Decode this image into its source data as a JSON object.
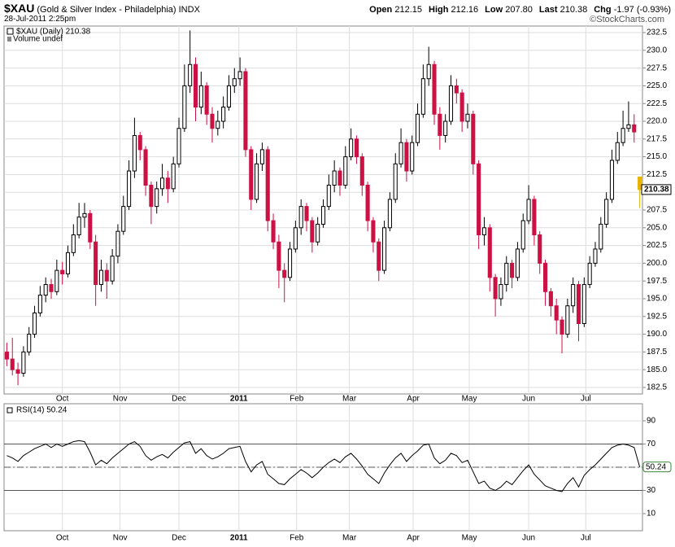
{
  "header": {
    "symbol": "$XAU",
    "name": "(Gold & Silver Index - Philadelphia)",
    "exchange": "INDX",
    "timestamp": "28-Jul-2011 2:25pm",
    "quote": [
      {
        "label": "Open",
        "value": "212.15"
      },
      {
        "label": "High",
        "value": "212.16"
      },
      {
        "label": "Low",
        "value": "207.80"
      },
      {
        "label": "Last",
        "value": "210.38"
      },
      {
        "label": "Chg",
        "value": "-1.97 (-0.93%)"
      }
    ],
    "brand": "©StockCharts.com"
  },
  "chart_data": [
    {
      "type": "candlestick",
      "legend": "$XAU (Daily) 210.38",
      "volume_label": "Volume undef",
      "up_color": "#000000",
      "down_color": "#cc1144",
      "last_color": "#e8b400",
      "grid": true,
      "last_price": 210.38,
      "xlim": [
        -0.5,
        114.5
      ],
      "xticks": [
        {
          "value": 10.0,
          "label": "Oct"
        },
        {
          "value": 20.4,
          "label": "Nov"
        },
        {
          "value": 31.0,
          "label": "Dec"
        },
        {
          "value": 41.8,
          "label": "2011"
        },
        {
          "value": 52.2,
          "label": "Feb"
        },
        {
          "value": 61.7,
          "label": "Mar"
        },
        {
          "value": 73.2,
          "label": "Apr"
        },
        {
          "value": 83.3,
          "label": "May"
        },
        {
          "value": 94.0,
          "label": "Jun"
        },
        {
          "value": 104.3,
          "label": "Jul"
        }
      ],
      "ylim": [
        181.58,
        233.42
      ],
      "yticks": [
        182.5,
        {
          "value": 185,
          "label": "185.0"
        },
        187.5,
        {
          "value": 190,
          "label": "190.0"
        },
        192.5,
        {
          "value": 195,
          "label": "195.0"
        },
        197.5,
        {
          "value": 200,
          "label": "200.0"
        },
        202.5,
        {
          "value": 205,
          "label": "205.0"
        },
        207.5,
        {
          "value": 210,
          "label": "210.0"
        },
        212.5,
        {
          "value": 215,
          "label": "215.0"
        },
        217.5,
        {
          "value": 220,
          "label": "220.0"
        },
        222.5,
        {
          "value": 225,
          "label": "225.0"
        },
        227.5,
        {
          "value": 230,
          "label": "230.0"
        },
        232.5
      ],
      "candles": [
        [
          187.5,
          188.8,
          185.5,
          186.5
        ],
        [
          186.5,
          189.5,
          184.2,
          185
        ],
        [
          185,
          186,
          182.8,
          184.5
        ],
        [
          184.5,
          188.3,
          184,
          187.5
        ],
        [
          187.5,
          191,
          187,
          190
        ],
        [
          190,
          194,
          189.5,
          193
        ],
        [
          193,
          196.8,
          192.5,
          195.5
        ],
        [
          195.5,
          198,
          194.5,
          197
        ],
        [
          197,
          197.8,
          195,
          196
        ],
        [
          196,
          200.5,
          195.5,
          199
        ],
        [
          199,
          200.2,
          197,
          198.5
        ],
        [
          198.5,
          202.5,
          198,
          201.5
        ],
        [
          201.5,
          205.5,
          201,
          204
        ],
        [
          204,
          208.5,
          203.5,
          206.5
        ],
        [
          206.5,
          208.5,
          205,
          207
        ],
        [
          207,
          207.5,
          202,
          203
        ],
        [
          203,
          204,
          194,
          197
        ],
        [
          197,
          200.5,
          196,
          199
        ],
        [
          199,
          200,
          195,
          197.5
        ],
        [
          197.5,
          202,
          197,
          201
        ],
        [
          201,
          205.5,
          200,
          204.5
        ],
        [
          204.5,
          209.5,
          204,
          208
        ],
        [
          208,
          214.5,
          207.5,
          213
        ],
        [
          213,
          220.5,
          212,
          218
        ],
        [
          218,
          218.5,
          214.5,
          216
        ],
        [
          216,
          216.5,
          209.5,
          211
        ],
        [
          211,
          211.5,
          205.5,
          208
        ],
        [
          208,
          211.5,
          207,
          210.5
        ],
        [
          210.5,
          214,
          209.5,
          212
        ],
        [
          212,
          213,
          208.5,
          210.5
        ],
        [
          210.5,
          215,
          210,
          214
        ],
        [
          214,
          220.5,
          213.5,
          219
        ],
        [
          219,
          228,
          218.5,
          225
        ],
        [
          225,
          232.8,
          224,
          228
        ],
        [
          228,
          229,
          220,
          222
        ],
        [
          222,
          227,
          221,
          225
        ],
        [
          225,
          225.5,
          219.5,
          221
        ],
        [
          221,
          222,
          217,
          219
        ],
        [
          219,
          221.5,
          218,
          220
        ],
        [
          220,
          223.5,
          219,
          222
        ],
        [
          222,
          226.5,
          221.5,
          225
        ],
        [
          225,
          227.5,
          224,
          226
        ],
        [
          226,
          229,
          225,
          227
        ],
        [
          227,
          227.5,
          215,
          216
        ],
        [
          216,
          216.5,
          207.5,
          209
        ],
        [
          209,
          215.5,
          208.5,
          214
        ],
        [
          214,
          217,
          213,
          216
        ],
        [
          216,
          216.5,
          204.5,
          206
        ],
        [
          206,
          207,
          202,
          203
        ],
        [
          203,
          204,
          196.5,
          199
        ],
        [
          199,
          200,
          194.5,
          198
        ],
        [
          198,
          203,
          197.5,
          202
        ],
        [
          202,
          206,
          201.5,
          205
        ],
        [
          205,
          209,
          204,
          208
        ],
        [
          208,
          208.5,
          204.5,
          206
        ],
        [
          206,
          206.5,
          201.5,
          203
        ],
        [
          203,
          206.5,
          202.5,
          205.5
        ],
        [
          205.5,
          209,
          205,
          208
        ],
        [
          208,
          212.5,
          207.5,
          211
        ],
        [
          211,
          214.5,
          210,
          213
        ],
        [
          213,
          213.5,
          209.5,
          211
        ],
        [
          211,
          216.5,
          210.5,
          215
        ],
        [
          215,
          219,
          214.5,
          217.5
        ],
        [
          217.5,
          218,
          214,
          215
        ],
        [
          215,
          215.5,
          209.5,
          211
        ],
        [
          211,
          211.5,
          204.5,
          206
        ],
        [
          206,
          206.5,
          201.5,
          203
        ],
        [
          203,
          203.5,
          197.5,
          199
        ],
        [
          199,
          206,
          198.5,
          205
        ],
        [
          205,
          210,
          204.5,
          209
        ],
        [
          209,
          215.5,
          208.5,
          214
        ],
        [
          214,
          219,
          213.5,
          217
        ],
        [
          217,
          217.5,
          211.5,
          213
        ],
        [
          213,
          218,
          212.5,
          217
        ],
        [
          217,
          222.5,
          216.5,
          221
        ],
        [
          221,
          228,
          220.5,
          226
        ],
        [
          226,
          230.5,
          225,
          228
        ],
        [
          228,
          228.5,
          219.5,
          221
        ],
        [
          221,
          222,
          216,
          218
        ],
        [
          218,
          221,
          217,
          220
        ],
        [
          220,
          226.5,
          219.5,
          225
        ],
        [
          225,
          226,
          222.5,
          224
        ],
        [
          224,
          224.5,
          218.5,
          220
        ],
        [
          220,
          222.5,
          219,
          221
        ],
        [
          221,
          221.5,
          212.5,
          214
        ],
        [
          214,
          214.5,
          202,
          204
        ],
        [
          204,
          206.5,
          202.5,
          205
        ],
        [
          205,
          205.5,
          196,
          198
        ],
        [
          198,
          198.5,
          192.5,
          195
        ],
        [
          195,
          198,
          194,
          197
        ],
        [
          197,
          201,
          196,
          200
        ],
        [
          200,
          200.5,
          196.5,
          198
        ],
        [
          198,
          203,
          197.5,
          202
        ],
        [
          202,
          207,
          201.5,
          206
        ],
        [
          206,
          211,
          205.5,
          209
        ],
        [
          209,
          209.5,
          202.5,
          204
        ],
        [
          204,
          204.5,
          198.5,
          200
        ],
        [
          200,
          200.5,
          194,
          196
        ],
        [
          196,
          196.5,
          192.5,
          194
        ],
        [
          194,
          195,
          190,
          192
        ],
        [
          192,
          192.5,
          187.3,
          190
        ],
        [
          190,
          195,
          189.5,
          194
        ],
        [
          194,
          198,
          193,
          197
        ],
        [
          197,
          197.5,
          189,
          191.5
        ],
        [
          191.5,
          198,
          191,
          197
        ],
        [
          197,
          201,
          196.5,
          200
        ],
        [
          200,
          203,
          199.5,
          202
        ],
        [
          202,
          206.5,
          201.5,
          205.5
        ],
        [
          205.5,
          210,
          205,
          209
        ],
        [
          209,
          216,
          208.5,
          214.5
        ],
        [
          214.5,
          218.5,
          214,
          217
        ],
        [
          217,
          221.5,
          216.5,
          219
        ],
        [
          219,
          222.8,
          218.5,
          219.5
        ],
        [
          219.5,
          221,
          217,
          218.5
        ],
        [
          212.15,
          212.16,
          207.8,
          210.38
        ]
      ]
    },
    {
      "type": "line",
      "title": "RSI(14) 50.24",
      "color": "#000000",
      "grid": true,
      "xlim": [
        -0.5,
        114.5
      ],
      "xticks": [
        {
          "value": 10.0,
          "label": "Oct"
        },
        {
          "value": 20.4,
          "label": "Nov"
        },
        {
          "value": 31.0,
          "label": "Dec"
        },
        {
          "value": 41.8,
          "label": "2011"
        },
        {
          "value": 52.2,
          "label": "Feb"
        },
        {
          "value": 61.7,
          "label": "Mar"
        },
        {
          "value": 73.2,
          "label": "Apr"
        },
        {
          "value": 83.3,
          "label": "May"
        },
        {
          "value": 94.0,
          "label": "Jun"
        },
        {
          "value": 104.3,
          "label": "Jul"
        }
      ],
      "ylim": [
        -4.7,
        104.7
      ],
      "yticks": [
        10,
        30,
        50,
        70,
        90
      ],
      "levels": [
        30,
        70
      ],
      "midline": 50,
      "values": [
        60,
        58,
        55,
        60,
        63,
        66,
        68,
        70,
        67,
        70,
        68,
        70,
        72,
        73,
        72,
        63,
        52,
        56,
        53,
        58,
        62,
        66,
        70,
        72,
        68,
        60,
        56,
        59,
        61,
        58,
        63,
        67,
        71,
        72,
        62,
        66,
        60,
        57,
        59,
        62,
        66,
        67,
        68,
        55,
        46,
        52,
        55,
        44,
        40,
        36,
        35,
        40,
        44,
        48,
        45,
        41,
        45,
        50,
        54,
        57,
        54,
        59,
        62,
        57,
        51,
        44,
        40,
        36,
        45,
        52,
        58,
        62,
        55,
        60,
        64,
        69,
        70,
        58,
        53,
        56,
        62,
        60,
        54,
        56,
        46,
        36,
        38,
        32,
        30,
        33,
        38,
        35,
        41,
        47,
        52,
        44,
        39,
        34,
        32,
        30,
        29,
        36,
        41,
        33,
        43,
        48,
        52,
        57,
        62,
        67,
        69,
        70,
        69,
        67,
        50.24
      ]
    }
  ]
}
